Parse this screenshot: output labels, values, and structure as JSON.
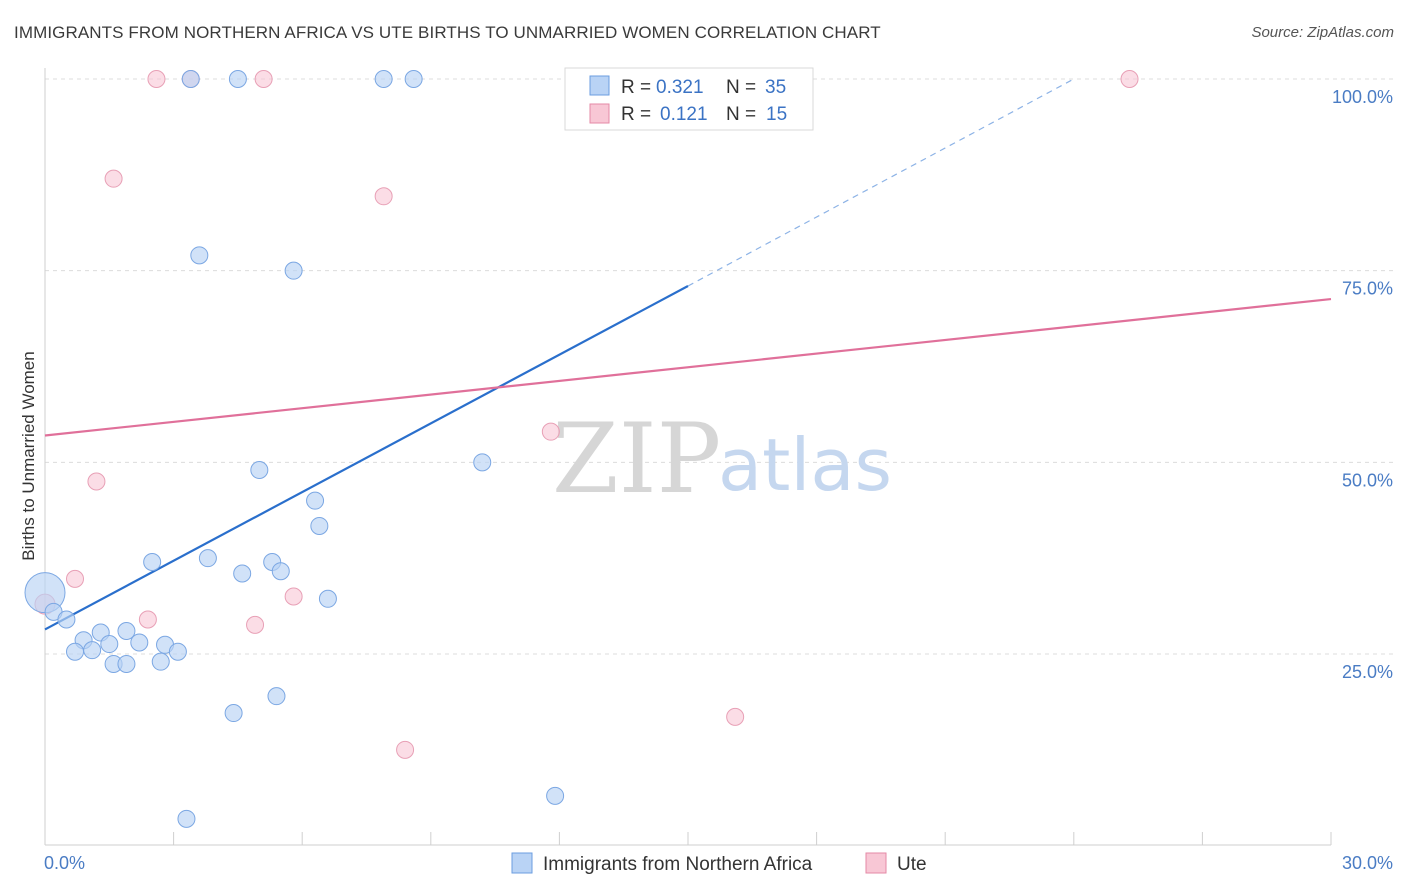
{
  "title": "IMMIGRANTS FROM NORTHERN AFRICA VS UTE BIRTHS TO UNMARRIED WOMEN CORRELATION CHART",
  "source": "Source: ZipAtlas.com",
  "watermark": {
    "zip": "ZIP",
    "atlas": "atlas"
  },
  "legend": {
    "r_label": "R =",
    "n_label": "N =",
    "series": [
      {
        "name": "Immigrants from Northern Africa",
        "r": "0.321",
        "n": "35",
        "color": "#6b9ee0",
        "fill": "#b9d3f5"
      },
      {
        "name": "Ute",
        "r": "0.121",
        "n": "15",
        "color": "#e58aa6",
        "fill": "#f8c7d5"
      }
    ]
  },
  "chart_data": {
    "type": "scatter",
    "title": "IMMIGRANTS FROM NORTHERN AFRICA VS UTE BIRTHS TO UNMARRIED WOMEN CORRELATION CHART",
    "xlabel": "",
    "ylabel": "Births to Unmarried Women",
    "xlim": [
      0,
      30
    ],
    "ylim": [
      0,
      102
    ],
    "x_tick_labels": [
      "0.0%",
      "30.0%"
    ],
    "y_ticks": [
      25,
      50,
      75,
      100
    ],
    "y_tick_labels": [
      "25.0%",
      "50.0%",
      "75.0%",
      "100.0%"
    ],
    "grid": true,
    "series": [
      {
        "name": "Immigrants from Northern Africa",
        "color": "#6b9ee0",
        "points": [
          [
            3.4,
            100
          ],
          [
            4.5,
            100
          ],
          [
            7.9,
            100
          ],
          [
            8.6,
            100
          ],
          [
            3.6,
            77
          ],
          [
            5.8,
            75
          ],
          [
            5.0,
            49
          ],
          [
            10.2,
            50
          ],
          [
            6.3,
            45
          ],
          [
            6.4,
            41.7
          ],
          [
            2.5,
            37
          ],
          [
            3.8,
            37.5
          ],
          [
            4.6,
            35.5
          ],
          [
            5.3,
            37
          ],
          [
            5.5,
            35.8
          ],
          [
            6.6,
            32.2
          ],
          [
            0.0,
            33
          ],
          [
            0.2,
            30.5
          ],
          [
            0.5,
            29.5
          ],
          [
            0.9,
            26.8
          ],
          [
            1.9,
            28
          ],
          [
            1.3,
            27.8
          ],
          [
            0.7,
            25.3
          ],
          [
            1.1,
            25.5
          ],
          [
            1.5,
            26.3
          ],
          [
            2.2,
            26.5
          ],
          [
            2.8,
            26.2
          ],
          [
            3.1,
            25.3
          ],
          [
            1.6,
            23.7
          ],
          [
            1.9,
            23.7
          ],
          [
            2.7,
            24
          ],
          [
            4.4,
            17.3
          ],
          [
            5.4,
            19.5
          ],
          [
            11.9,
            6.5
          ],
          [
            3.3,
            3.5
          ]
        ],
        "trend": {
          "x0": 0.0,
          "y0": 28.2,
          "x1": 15.0,
          "y1": 73.0,
          "dash_to_x": 24.0,
          "dash_to_y": 100
        }
      },
      {
        "name": "Ute",
        "color": "#e58aa6",
        "points": [
          [
            2.6,
            100
          ],
          [
            3.4,
            100
          ],
          [
            5.1,
            100
          ],
          [
            25.3,
            100
          ],
          [
            1.6,
            87
          ],
          [
            7.9,
            84.7
          ],
          [
            11.8,
            54
          ],
          [
            1.2,
            47.5
          ],
          [
            0.7,
            34.8
          ],
          [
            0.0,
            31.5
          ],
          [
            2.4,
            29.5
          ],
          [
            4.9,
            28.8
          ],
          [
            5.8,
            32.5
          ],
          [
            8.4,
            12.5
          ],
          [
            16.1,
            16.8
          ]
        ],
        "trend": {
          "x0": 0.0,
          "y0": 53.5,
          "x1": 30.0,
          "y1": 71.3
        }
      }
    ]
  }
}
